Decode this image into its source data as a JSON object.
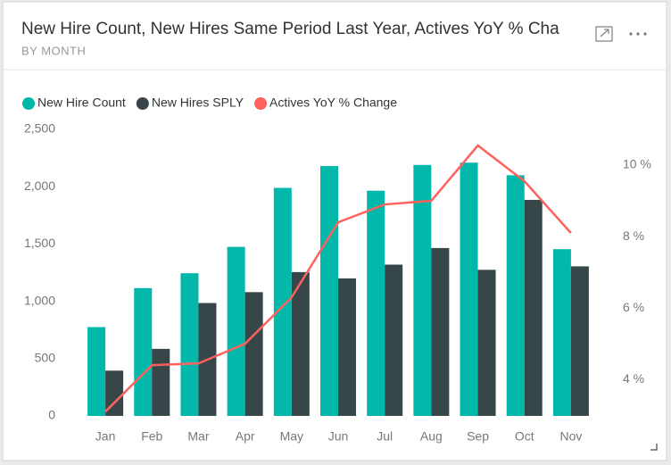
{
  "chart_data": {
    "type": "bar",
    "title": "New Hire Count, New Hires Same Period Last Year, Actives YoY % Cha",
    "subtitle": "BY MONTH",
    "categories": [
      "Jan",
      "Feb",
      "Mar",
      "Apr",
      "May",
      "Jun",
      "Jul",
      "Aug",
      "Sep",
      "Oct",
      "Nov"
    ],
    "series": [
      {
        "name": "New Hire Count",
        "color": "#01b8aa",
        "values": [
          775,
          1115,
          1245,
          1475,
          1990,
          2180,
          1965,
          2190,
          2210,
          2100,
          1455
        ]
      },
      {
        "name": "New Hires SPLY",
        "color": "#374649",
        "values": [
          395,
          585,
          985,
          1080,
          1255,
          1200,
          1320,
          1465,
          1275,
          1885,
          1305
        ]
      },
      {
        "name": "Actives YoY % Change",
        "color": "#fd625e",
        "type": "line",
        "axis": "y2",
        "values": [
          3.1,
          4.4,
          4.45,
          5.0,
          6.3,
          8.4,
          8.9,
          9.0,
          10.55,
          9.55,
          8.1
        ]
      }
    ],
    "ylim": [
      0,
      2500
    ],
    "yticks": [
      0,
      500,
      {
        "value": 1000,
        "label": "1,000"
      },
      {
        "value": 1500,
        "label": "1,500"
      },
      {
        "value": 2000,
        "label": "2,000"
      },
      {
        "value": 2500,
        "label": "2,500"
      }
    ],
    "y2lim": [
      2.98,
      11
    ],
    "y2ticks": [
      {
        "value": 4,
        "label": "4 %"
      },
      {
        "value": 6,
        "label": "6 %"
      },
      {
        "value": 8,
        "label": "8 %"
      },
      {
        "value": 10,
        "label": "10 %"
      }
    ],
    "grid": false,
    "legend": "top-left"
  }
}
